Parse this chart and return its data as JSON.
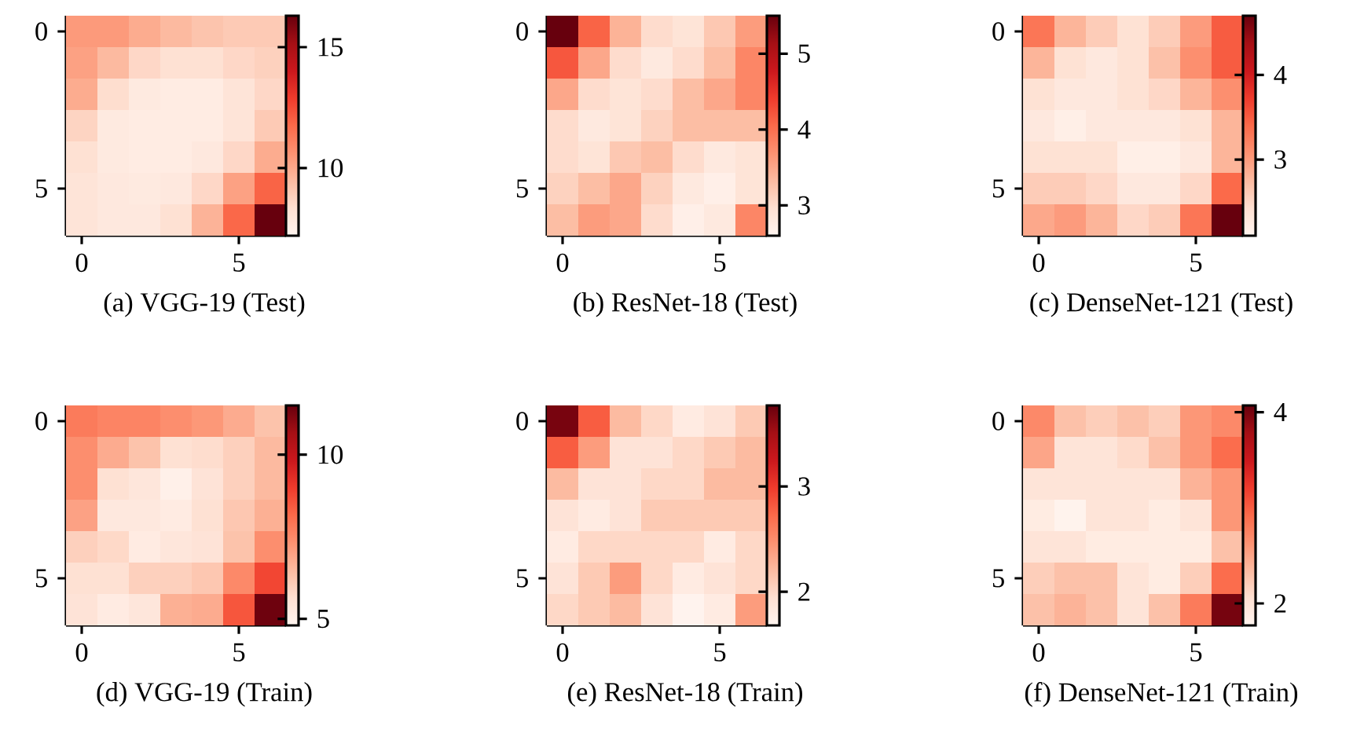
{
  "chart_data": [
    {
      "type": "heatmap",
      "title": "(a)  VGG-19 (Test)",
      "categories": [
        "0",
        null,
        null,
        null,
        null,
        "5",
        null
      ],
      "y_categories": [
        "0",
        null,
        null,
        null,
        null,
        "5",
        null
      ],
      "clim": [
        7.2,
        16.3
      ],
      "cticks": [
        10,
        15
      ],
      "cells": [
        [
          10.4,
          10.4,
          9.9,
          9.5,
          9.2,
          9.0,
          9.0
        ],
        [
          10.2,
          9.5,
          8.6,
          8.3,
          8.3,
          8.6,
          8.8
        ],
        [
          9.9,
          8.4,
          7.8,
          7.7,
          7.7,
          8.1,
          8.6
        ],
        [
          8.7,
          7.8,
          7.7,
          7.7,
          7.7,
          8.1,
          9.0
        ],
        [
          8.3,
          7.8,
          7.7,
          7.7,
          7.9,
          8.6,
          9.9
        ],
        [
          8.1,
          7.9,
          7.8,
          7.9,
          8.6,
          10.2,
          11.9
        ],
        [
          8.1,
          7.9,
          7.9,
          8.3,
          9.7,
          11.8,
          16.3
        ]
      ]
    },
    {
      "type": "heatmap",
      "title": "(b)  ResNet-18 (Test)",
      "categories": [
        "0",
        null,
        null,
        null,
        null,
        "5",
        null
      ],
      "y_categories": [
        "0",
        null,
        null,
        null,
        null,
        "5",
        null
      ],
      "clim": [
        2.6,
        5.5
      ],
      "cticks": [
        3,
        4,
        5
      ],
      "cells": [
        [
          5.5,
          4.1,
          3.4,
          3.0,
          2.9,
          3.2,
          3.6
        ],
        [
          4.2,
          3.5,
          3.0,
          2.8,
          3.0,
          3.3,
          3.8
        ],
        [
          3.5,
          3.0,
          2.9,
          3.0,
          3.3,
          3.5,
          3.8
        ],
        [
          3.0,
          2.8,
          2.9,
          3.1,
          3.3,
          3.3,
          3.3
        ],
        [
          3.0,
          2.9,
          3.2,
          3.3,
          3.0,
          2.8,
          2.9
        ],
        [
          3.1,
          3.3,
          3.5,
          3.1,
          2.8,
          2.7,
          2.9
        ],
        [
          3.3,
          3.6,
          3.5,
          3.0,
          2.7,
          2.8,
          3.8
        ]
      ]
    },
    {
      "type": "heatmap",
      "title": "(c)  DenseNet-121 (Test)",
      "categories": [
        "0",
        null,
        null,
        null,
        null,
        "5",
        null
      ],
      "y_categories": [
        "0",
        null,
        null,
        null,
        null,
        "5",
        null
      ],
      "clim": [
        2.1,
        4.7
      ],
      "cticks": [
        3,
        4
      ],
      "cells": [
        [
          3.3,
          2.8,
          2.6,
          2.4,
          2.6,
          3.0,
          3.5
        ],
        [
          2.8,
          2.4,
          2.3,
          2.4,
          2.7,
          3.1,
          3.5
        ],
        [
          2.4,
          2.3,
          2.3,
          2.4,
          2.5,
          2.8,
          3.1
        ],
        [
          2.3,
          2.2,
          2.3,
          2.3,
          2.3,
          2.4,
          2.8
        ],
        [
          2.4,
          2.4,
          2.4,
          2.2,
          2.2,
          2.3,
          2.8
        ],
        [
          2.6,
          2.6,
          2.5,
          2.3,
          2.3,
          2.5,
          3.4
        ],
        [
          2.9,
          3.0,
          2.8,
          2.5,
          2.6,
          3.3,
          4.7
        ]
      ]
    },
    {
      "type": "heatmap",
      "title": "(d)  VGG-19 (Train)",
      "categories": [
        "0",
        null,
        null,
        null,
        null,
        "5",
        null
      ],
      "y_categories": [
        "0",
        null,
        null,
        null,
        null,
        "5",
        null
      ],
      "clim": [
        4.8,
        11.5
      ],
      "cticks": [
        5,
        10
      ],
      "cells": [
        [
          7.8,
          7.6,
          7.6,
          7.4,
          7.2,
          6.8,
          6.3
        ],
        [
          7.4,
          6.8,
          6.3,
          5.6,
          5.7,
          6.0,
          6.5
        ],
        [
          7.4,
          5.6,
          5.4,
          5.0,
          5.5,
          6.0,
          6.5
        ],
        [
          7.0,
          5.3,
          5.3,
          5.2,
          5.6,
          6.2,
          6.7
        ],
        [
          6.0,
          5.8,
          5.2,
          5.4,
          5.5,
          6.3,
          7.4
        ],
        [
          5.6,
          5.6,
          6.0,
          6.0,
          6.2,
          7.5,
          8.8
        ],
        [
          5.5,
          5.2,
          5.4,
          6.7,
          6.8,
          8.5,
          11.4
        ]
      ]
    },
    {
      "type": "heatmap",
      "title": "(e)  ResNet-18 (Train)",
      "categories": [
        "0",
        null,
        null,
        null,
        null,
        "5",
        null
      ],
      "y_categories": [
        "0",
        null,
        null,
        null,
        null,
        "5",
        null
      ],
      "clim": [
        1.68,
        3.77
      ],
      "cticks": [
        2,
        3
      ],
      "cells": [
        [
          3.7,
          2.8,
          2.2,
          2.0,
          1.8,
          1.9,
          2.1
        ],
        [
          2.8,
          2.4,
          1.9,
          1.9,
          2.0,
          2.1,
          2.2
        ],
        [
          2.2,
          1.9,
          1.9,
          2.0,
          2.0,
          2.2,
          2.2
        ],
        [
          1.9,
          1.8,
          1.9,
          2.1,
          2.1,
          2.1,
          2.1
        ],
        [
          1.8,
          2.0,
          2.0,
          2.0,
          2.0,
          1.8,
          2.0
        ],
        [
          1.9,
          2.1,
          2.4,
          2.0,
          1.8,
          1.9,
          2.0
        ],
        [
          2.0,
          2.1,
          2.2,
          1.9,
          1.7,
          1.8,
          2.4
        ]
      ]
    },
    {
      "type": "heatmap",
      "title": "(f)  DenseNet-121 (Train)",
      "categories": [
        "0",
        null,
        null,
        null,
        null,
        "5",
        null
      ],
      "y_categories": [
        "0",
        null,
        null,
        null,
        null,
        "5",
        null
      ],
      "clim": [
        1.77,
        4.07
      ],
      "cticks": [
        2,
        4
      ],
      "cells": [
        [
          2.7,
          2.3,
          2.2,
          2.3,
          2.2,
          2.6,
          2.7
        ],
        [
          2.5,
          2.0,
          2.0,
          2.1,
          2.3,
          2.6,
          2.9
        ],
        [
          2.0,
          2.0,
          2.0,
          2.0,
          2.0,
          2.4,
          2.6
        ],
        [
          1.9,
          1.8,
          2.0,
          2.0,
          1.9,
          2.0,
          2.6
        ],
        [
          2.0,
          2.0,
          1.9,
          1.9,
          1.9,
          1.9,
          2.3
        ],
        [
          2.2,
          2.3,
          2.3,
          2.0,
          1.9,
          2.2,
          2.9
        ],
        [
          2.3,
          2.4,
          2.3,
          2.0,
          2.3,
          2.8,
          4.0
        ]
      ]
    }
  ]
}
